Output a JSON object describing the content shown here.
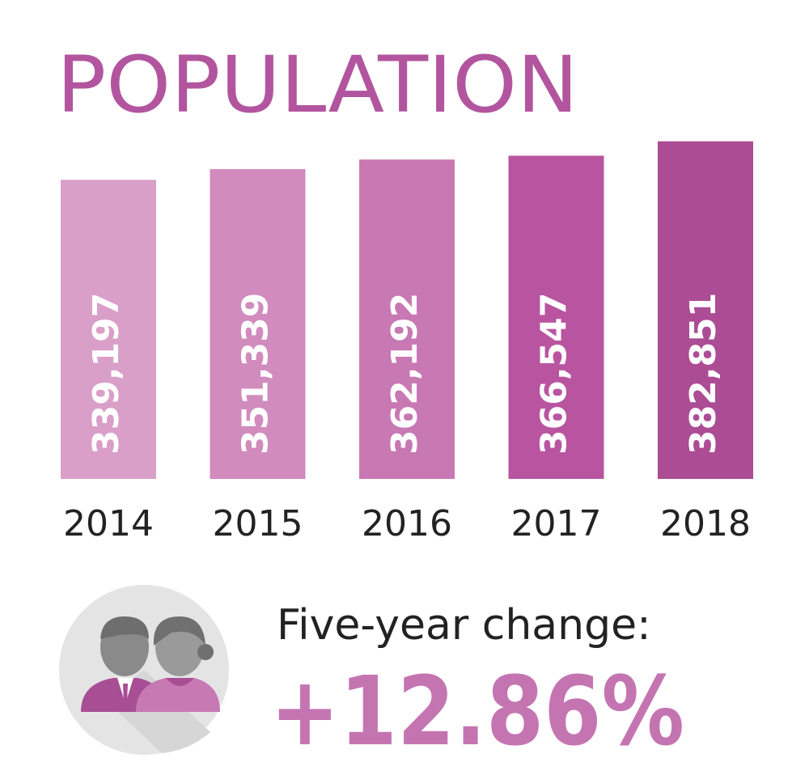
{
  "chart_data": {
    "type": "bar",
    "title": "POPULATION",
    "categories": [
      "2014",
      "2015",
      "2016",
      "2017",
      "2018"
    ],
    "values": [
      339197,
      351339,
      362192,
      366547,
      382851
    ],
    "value_labels": [
      "339,197",
      "351,339",
      "362,192",
      "366,547",
      "382,851"
    ],
    "colors": [
      "#d99fc8",
      "#d18bbd",
      "#c878b3",
      "#b955a0",
      "#ab4c94"
    ],
    "ylim": [
      0,
      400000
    ],
    "change_label": "Five-year change:",
    "change_value": "+12.86%"
  }
}
